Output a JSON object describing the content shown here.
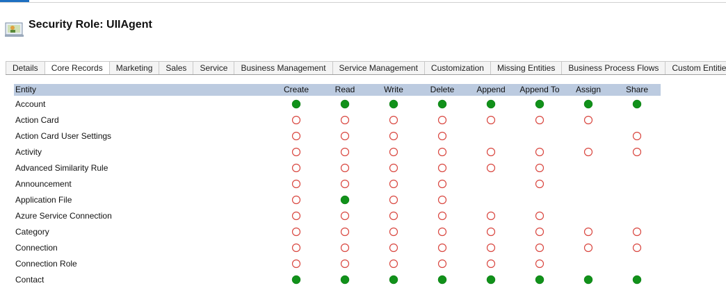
{
  "header": {
    "title": "Security Role: UIIAgent"
  },
  "tabs": {
    "items": [
      "Details",
      "Core Records",
      "Marketing",
      "Sales",
      "Service",
      "Business Management",
      "Service Management",
      "Customization",
      "Missing Entities",
      "Business Process Flows",
      "Custom Entities"
    ],
    "active": 1
  },
  "table": {
    "columns": [
      "Entity",
      "Create",
      "Read",
      "Write",
      "Delete",
      "Append",
      "Append To",
      "Assign",
      "Share"
    ],
    "rows": [
      {
        "entity": "Account",
        "privileges": [
          "full",
          "full",
          "full",
          "full",
          "full",
          "full",
          "full",
          "full"
        ]
      },
      {
        "entity": "Action Card",
        "privileges": [
          "none",
          "none",
          "none",
          "none",
          "none",
          "none",
          "none",
          null
        ]
      },
      {
        "entity": "Action Card User Settings",
        "privileges": [
          "none",
          "none",
          "none",
          "none",
          null,
          null,
          null,
          "none"
        ]
      },
      {
        "entity": "Activity",
        "privileges": [
          "none",
          "none",
          "none",
          "none",
          "none",
          "none",
          "none",
          "none"
        ]
      },
      {
        "entity": "Advanced Similarity Rule",
        "privileges": [
          "none",
          "none",
          "none",
          "none",
          "none",
          "none",
          null,
          null
        ]
      },
      {
        "entity": "Announcement",
        "privileges": [
          "none",
          "none",
          "none",
          "none",
          null,
          "none",
          null,
          null
        ]
      },
      {
        "entity": "Application File",
        "privileges": [
          "none",
          "full",
          "none",
          "none",
          null,
          null,
          null,
          null
        ]
      },
      {
        "entity": "Azure Service Connection",
        "privileges": [
          "none",
          "none",
          "none",
          "none",
          "none",
          "none",
          null,
          null
        ]
      },
      {
        "entity": "Category",
        "privileges": [
          "none",
          "none",
          "none",
          "none",
          "none",
          "none",
          "none",
          "none"
        ]
      },
      {
        "entity": "Connection",
        "privileges": [
          "none",
          "none",
          "none",
          "none",
          "none",
          "none",
          "none",
          "none"
        ]
      },
      {
        "entity": "Connection Role",
        "privileges": [
          "none",
          "none",
          "none",
          "none",
          "none",
          "none",
          null,
          null
        ]
      },
      {
        "entity": "Contact",
        "privileges": [
          "full",
          "full",
          "full",
          "full",
          "full",
          "full",
          "full",
          "full"
        ]
      }
    ]
  }
}
